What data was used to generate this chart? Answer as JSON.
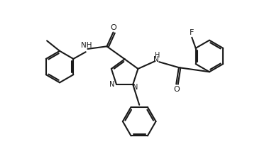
{
  "bg_color": "#ffffff",
  "line_color": "#1a1a1a",
  "line_width": 1.5,
  "fig_width": 3.62,
  "fig_height": 2.24,
  "dpi": 100,
  "xlim": [
    0,
    10
  ],
  "ylim": [
    0,
    6.2
  ]
}
